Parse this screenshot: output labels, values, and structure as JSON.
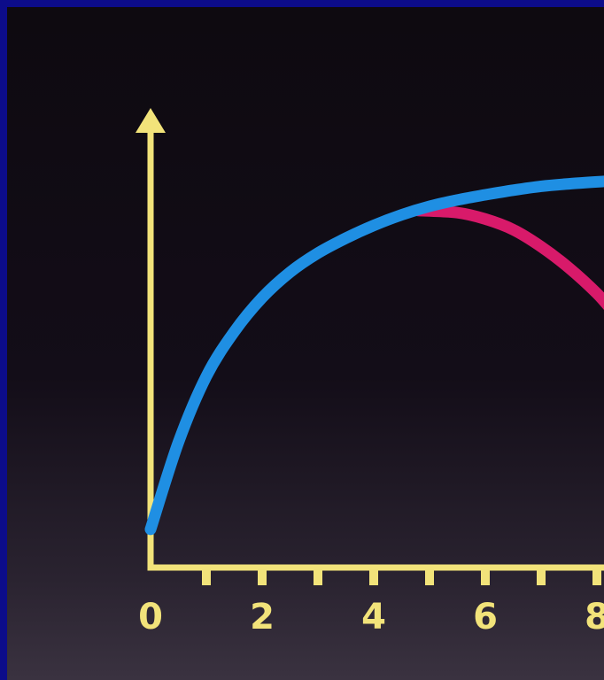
{
  "chart_data": {
    "type": "line",
    "title": "",
    "xlabel": "",
    "ylabel": "",
    "xlim": [
      0,
      8.3
    ],
    "ylim": [
      0,
      10
    ],
    "x_ticks": [
      0,
      1,
      2,
      3,
      4,
      5,
      6,
      7,
      8
    ],
    "x_tick_labels": [
      "0",
      "2",
      "4",
      "6",
      "8"
    ],
    "x_tick_label_values": [
      0,
      2,
      4,
      6,
      8
    ],
    "grid": false,
    "legend": "none",
    "axis_color": "#f2e37a",
    "series": [
      {
        "color": "#1f8fe3",
        "x": [
          0,
          0.5,
          1,
          1.5,
          2,
          2.5,
          3,
          3.5,
          4,
          4.5,
          5,
          5.5,
          6,
          6.5,
          7,
          7.5,
          8.3
        ],
        "y": [
          0.9,
          2.95,
          4.5,
          5.55,
          6.35,
          6.95,
          7.4,
          7.75,
          8.05,
          8.3,
          8.5,
          8.65,
          8.77,
          8.88,
          8.97,
          9.03,
          9.1
        ]
      },
      {
        "color": "#d81a6a",
        "x": [
          4.8,
          5.5,
          6,
          6.5,
          7,
          7.5,
          8,
          8.3
        ],
        "y": [
          8.4,
          8.35,
          8.2,
          7.95,
          7.55,
          7.05,
          6.45,
          6.0
        ]
      }
    ]
  }
}
